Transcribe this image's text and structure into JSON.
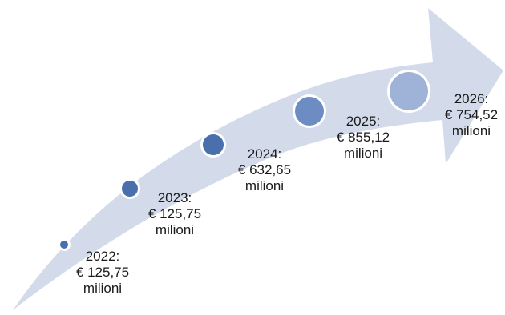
{
  "colors": {
    "arrow_fill": "#d3dbeb",
    "dot_fill": "#4a6fad",
    "dot_fill_large": "#9fb2d8",
    "dot_ring": "#ffffff",
    "text": "#1a1a1a"
  },
  "milestones": [
    {
      "year": "2022:",
      "amount": "€ 125,75",
      "unit": "milioni"
    },
    {
      "year": "2023:",
      "amount": "€ 125,75",
      "unit": "milioni"
    },
    {
      "year": "2024:",
      "amount": "€ 632,65",
      "unit": "milioni"
    },
    {
      "year": "2025:",
      "amount": "€ 855,12",
      "unit": "milioni"
    },
    {
      "year": "2026:",
      "amount": "€ 754,52",
      "unit": "milioni"
    }
  ]
}
